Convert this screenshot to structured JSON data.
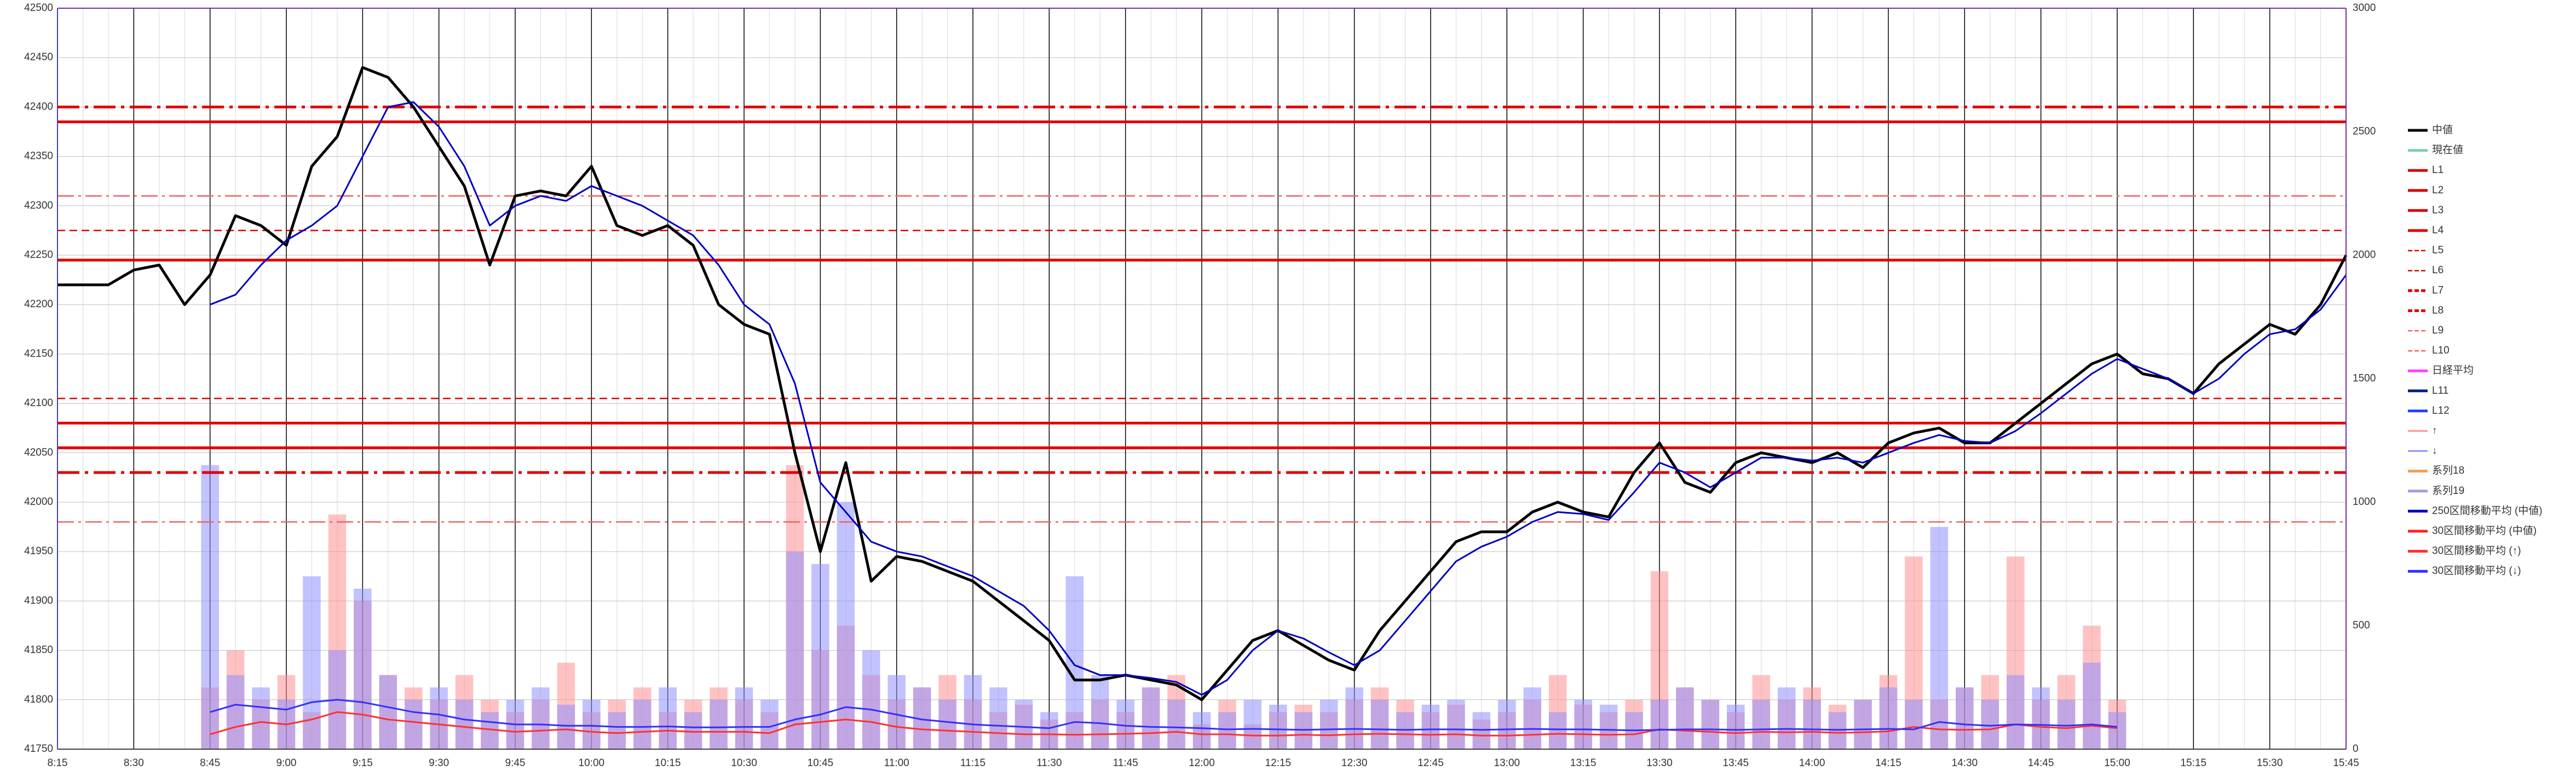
{
  "chart_data": {
    "type": "line",
    "categories": [
      "8:15",
      null,
      null,
      "8:30",
      null,
      null,
      "8:45",
      null,
      null,
      "9:00",
      null,
      null,
      "9:15",
      null,
      null,
      "9:30",
      null,
      null,
      "9:45",
      null,
      null,
      "10:00",
      null,
      null,
      "10:15",
      null,
      null,
      "10:30",
      null,
      null,
      "10:45",
      null,
      null,
      "11:00",
      null,
      null,
      "11:15",
      null,
      null,
      "11:30",
      null,
      null,
      "11:45",
      null,
      null,
      "12:00",
      null,
      null,
      "12:15",
      null,
      null,
      "12:30",
      null,
      null,
      "12:45",
      null,
      null,
      "13:00",
      null,
      null,
      "13:15",
      null,
      null,
      "13:30",
      null,
      null,
      "13:45",
      null,
      null,
      "14:00",
      null,
      null,
      "14:15",
      null,
      null,
      "14:30",
      null,
      null,
      "14:45",
      null,
      null,
      "15:00",
      null,
      null,
      "15:15",
      null,
      null,
      "15:30",
      null,
      null,
      "15:45"
    ],
    "ylim": [
      41750,
      42500
    ],
    "yticks": [
      41750,
      41800,
      41850,
      41900,
      41950,
      42000,
      42050,
      42100,
      42150,
      42200,
      42250,
      42300,
      42350,
      42400,
      42450,
      42500
    ],
    "y2lim": [
      0,
      3000
    ],
    "y2ticks": [
      0,
      500,
      1000,
      1500,
      2000,
      2500,
      3000
    ],
    "grid": true,
    "legend": "right",
    "series": [
      {
        "name": "中値",
        "color": "#000000",
        "style": "solid",
        "values": [
          42220,
          42220,
          42220,
          42235,
          42240,
          42200,
          42230,
          42290,
          42280,
          42260,
          42340,
          42370,
          42440,
          42430,
          42400,
          42360,
          42320,
          42240,
          42310,
          42315,
          42310,
          42340,
          42280,
          42270,
          42280,
          42260,
          42200,
          42180,
          42170,
          42050,
          41950,
          42040,
          41920,
          41945,
          41940,
          41930,
          41920,
          41900,
          41880,
          41860,
          41820,
          41820,
          41825,
          41820,
          41815,
          41800,
          41830,
          41860,
          41870,
          41855,
          41840,
          41830,
          41870,
          41900,
          41930,
          41960,
          41970,
          41970,
          41990,
          42000,
          41990,
          41985,
          42030,
          42060,
          42020,
          42010,
          42040,
          42050,
          42045,
          42040,
          42050,
          42035,
          42060,
          42070,
          42075,
          42060,
          42060,
          42080,
          42100,
          42120,
          42140,
          42150,
          42130,
          42125,
          42110,
          42140,
          42160,
          42180,
          42170,
          42200,
          42250
        ]
      },
      {
        "name": "現在値",
        "color": "#7fd1a8",
        "style": "solid"
      },
      {
        "name": "L1",
        "color": "#e00000",
        "style": "solid",
        "level": 42385
      },
      {
        "name": "L2",
        "color": "#e00000",
        "style": "solid",
        "level": 42245
      },
      {
        "name": "L3",
        "color": "#e00000",
        "style": "solid",
        "level": 42080
      },
      {
        "name": "L4",
        "color": "#e00000",
        "style": "solid",
        "level": 42055
      },
      {
        "name": "L5",
        "color": "#e00000",
        "style": "dashed",
        "level": 42275
      },
      {
        "name": "L6",
        "color": "#e00000",
        "style": "dashed",
        "level": 42105
      },
      {
        "name": "L7",
        "color": "#e00000",
        "style": "dashdot",
        "level": 42400
      },
      {
        "name": "L8",
        "color": "#e00000",
        "style": "dashdot",
        "level": 42030
      },
      {
        "name": "L9",
        "color": "#f06060",
        "style": "dashdot-thin",
        "level": 42310
      },
      {
        "name": "L10",
        "color": "#f06060",
        "style": "dashdot-thin",
        "level": 41980
      },
      {
        "name": "日経平均",
        "color": "#ff40ff",
        "style": "solid"
      },
      {
        "name": "L11",
        "color": "#002080",
        "style": "solid"
      },
      {
        "name": "L12",
        "color": "#2040ff",
        "style": "solid"
      },
      {
        "name": "↑",
        "color": "#ff9090",
        "style": "bar",
        "axis": "y2",
        "values": [
          null,
          null,
          null,
          null,
          null,
          null,
          250,
          400,
          200,
          300,
          150,
          950,
          600,
          300,
          250,
          200,
          300,
          200,
          150,
          200,
          350,
          150,
          200,
          250,
          150,
          200,
          250,
          200,
          150,
          1150,
          400,
          500,
          300,
          200,
          250,
          300,
          200,
          150,
          180,
          120,
          150,
          200,
          150,
          250,
          300,
          100,
          200,
          100,
          150,
          180,
          150,
          200,
          250,
          200,
          150,
          180,
          120,
          150,
          200,
          300,
          180,
          150,
          200,
          720,
          250,
          200,
          150,
          300,
          200,
          250,
          180,
          200,
          300,
          780,
          200,
          250,
          300,
          780,
          200,
          300,
          500,
          200,
          null,
          null,
          null,
          null,
          null,
          null,
          null,
          null,
          null
        ]
      },
      {
        "name": "↓",
        "color": "#9090ff",
        "style": "bar",
        "axis": "y2",
        "values": [
          null,
          null,
          null,
          null,
          null,
          null,
          1150,
          300,
          250,
          200,
          700,
          400,
          650,
          300,
          200,
          250,
          200,
          150,
          200,
          250,
          180,
          200,
          150,
          200,
          250,
          150,
          200,
          250,
          200,
          800,
          750,
          1000,
          400,
          300,
          250,
          200,
          300,
          250,
          200,
          150,
          700,
          300,
          200,
          250,
          200,
          150,
          150,
          200,
          180,
          150,
          200,
          250,
          200,
          150,
          180,
          200,
          150,
          200,
          250,
          150,
          200,
          180,
          150,
          200,
          250,
          200,
          180,
          200,
          250,
          200,
          150,
          200,
          250,
          200,
          900,
          250,
          200,
          300,
          250,
          200,
          350,
          150,
          null,
          null,
          null,
          null,
          null,
          null,
          null,
          null,
          null
        ]
      },
      {
        "name": "系列18",
        "color": "#f0a050",
        "style": "solid"
      },
      {
        "name": "系列19",
        "color": "#a0a0e0",
        "style": "solid"
      },
      {
        "name": "250区間移動平均 (中値)",
        "color": "#0000c0",
        "style": "solid",
        "values": [
          null,
          null,
          null,
          null,
          null,
          null,
          42200,
          42210,
          42240,
          42265,
          42280,
          42300,
          42350,
          42400,
          42405,
          42380,
          42340,
          42280,
          42300,
          42310,
          42305,
          42320,
          42310,
          42300,
          42285,
          42270,
          42240,
          42200,
          42180,
          42120,
          42020,
          41990,
          41960,
          41950,
          41945,
          41935,
          41925,
          41910,
          41895,
          41870,
          41835,
          41825,
          41825,
          41822,
          41818,
          41805,
          41820,
          41850,
          41870,
          41862,
          41848,
          41835,
          41850,
          41880,
          41910,
          41940,
          41955,
          41965,
          41980,
          41990,
          41988,
          41982,
          42010,
          42040,
          42030,
          42015,
          42030,
          42045,
          42045,
          42042,
          42045,
          42040,
          42050,
          42060,
          42068,
          42062,
          42060,
          42072,
          42090,
          42110,
          42130,
          42145,
          42135,
          42125,
          42110,
          42125,
          42150,
          42170,
          42175,
          42195,
          42230
        ]
      },
      {
        "name": "30区間移動平均 (中値)",
        "color": "#ff2020",
        "style": "solid"
      },
      {
        "name": "30区間移動平均 (↑)",
        "color": "#ff3030",
        "style": "solid",
        "axis": "y2",
        "values": [
          null,
          null,
          null,
          null,
          null,
          null,
          60,
          90,
          110,
          100,
          120,
          150,
          140,
          120,
          110,
          100,
          90,
          80,
          70,
          75,
          80,
          70,
          65,
          70,
          75,
          70,
          70,
          70,
          65,
          100,
          110,
          120,
          110,
          90,
          80,
          75,
          70,
          65,
          60,
          60,
          58,
          60,
          62,
          65,
          70,
          60,
          60,
          55,
          55,
          58,
          56,
          60,
          62,
          60,
          58,
          60,
          55,
          55,
          58,
          62,
          60,
          58,
          60,
          80,
          75,
          70,
          65,
          70,
          68,
          70,
          66,
          68,
          72,
          90,
          80,
          78,
          80,
          100,
          90,
          85,
          95,
          85,
          null,
          null,
          null,
          null,
          null,
          null,
          null,
          null,
          null
        ]
      },
      {
        "name": "30区間移動平均 (↓)",
        "color": "#3030ff",
        "style": "solid",
        "axis": "y2",
        "values": [
          null,
          null,
          null,
          null,
          null,
          null,
          150,
          180,
          170,
          160,
          190,
          200,
          190,
          170,
          150,
          140,
          120,
          110,
          100,
          100,
          95,
          95,
          90,
          90,
          92,
          88,
          88,
          90,
          90,
          120,
          140,
          170,
          160,
          140,
          120,
          110,
          100,
          95,
          90,
          85,
          110,
          105,
          95,
          90,
          88,
          85,
          80,
          82,
          80,
          78,
          80,
          82,
          80,
          78,
          80,
          80,
          78,
          80,
          82,
          80,
          80,
          78,
          76,
          78,
          80,
          80,
          78,
          80,
          82,
          80,
          78,
          80,
          82,
          80,
          110,
          100,
          95,
          100,
          98,
          95,
          100,
          90,
          null,
          null,
          null,
          null,
          null,
          null,
          null,
          null,
          null
        ]
      }
    ]
  }
}
